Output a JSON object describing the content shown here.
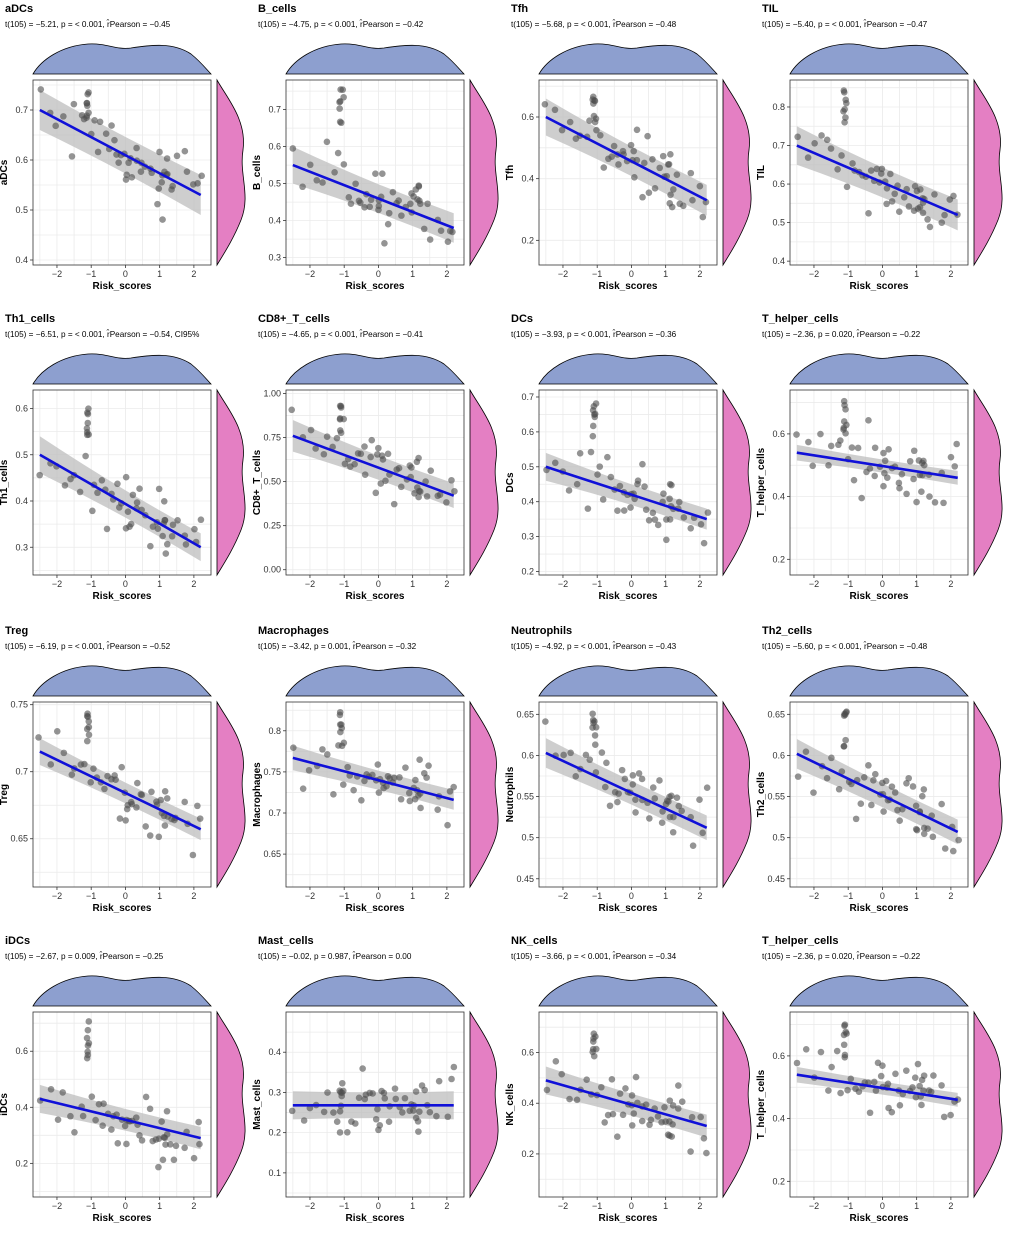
{
  "chart_data": [
    {
      "type": "scatter",
      "title": "aDCs",
      "stat": "t(105) = −5.21, p = < 0.001, r̂Pearson = −0.45",
      "xlabel": "Risk_scores",
      "ylabel": "aDCs",
      "xlim": [
        -2.7,
        2.5
      ],
      "ylim": [
        0.39,
        0.76
      ],
      "xticks": [
        -2,
        -1,
        0,
        1,
        2
      ],
      "yticks": [
        0.4,
        0.5,
        0.6,
        0.7
      ],
      "fit": {
        "x1": -2.5,
        "y1": 0.7,
        "x2": 2.2,
        "y2": 0.53,
        "band_left": 0.04,
        "band_right": 0.04
      }
    },
    {
      "type": "scatter",
      "title": "B_cells",
      "stat": "t(105) = −4.75, p = < 0.001, r̂Pearson = −0.42",
      "xlabel": "Risk_scores",
      "ylabel": "B_cells",
      "xlim": [
        -2.7,
        2.5
      ],
      "ylim": [
        0.28,
        0.78
      ],
      "xticks": [
        -2,
        -1,
        0,
        1,
        2
      ],
      "yticks": [
        0.3,
        0.4,
        0.5,
        0.6,
        0.7
      ],
      "fit": {
        "x1": -2.5,
        "y1": 0.55,
        "x2": 2.2,
        "y2": 0.38,
        "band_left": 0.05,
        "band_right": 0.04
      }
    },
    {
      "type": "scatter",
      "title": "Tfh",
      "stat": "t(105) = −5.68, p = < 0.001, r̂Pearson = −0.48",
      "xlabel": "Risk_scores",
      "ylabel": "Tfh",
      "xlim": [
        -2.7,
        2.5
      ],
      "ylim": [
        0.12,
        0.72
      ],
      "xticks": [
        -2,
        -1,
        0,
        1,
        2
      ],
      "yticks": [
        0.2,
        0.4,
        0.6
      ],
      "fit": {
        "x1": -2.5,
        "y1": 0.6,
        "x2": 2.2,
        "y2": 0.33,
        "band_left": 0.06,
        "band_right": 0.05
      }
    },
    {
      "type": "scatter",
      "title": "TIL",
      "stat": "t(105) = −5.40, p = < 0.001, r̂Pearson = −0.47",
      "xlabel": "Risk_scores",
      "ylabel": "TIL",
      "xlim": [
        -2.7,
        2.5
      ],
      "ylim": [
        0.39,
        0.87
      ],
      "xticks": [
        -2,
        -1,
        0,
        1,
        2
      ],
      "yticks": [
        0.4,
        0.5,
        0.6,
        0.7,
        0.8
      ],
      "fit": {
        "x1": -2.5,
        "y1": 0.7,
        "x2": 2.2,
        "y2": 0.52,
        "band_left": 0.05,
        "band_right": 0.04
      }
    },
    {
      "type": "scatter",
      "title": "Th1_cells",
      "stat": "t(105) = −6.51, p = < 0.001, r̂Pearson = −0.54, CI95%",
      "xlabel": "Risk_scores",
      "ylabel": "Th1_cells",
      "xlim": [
        -2.7,
        2.5
      ],
      "ylim": [
        0.24,
        0.64
      ],
      "xticks": [
        -2,
        -1,
        0,
        1,
        2
      ],
      "yticks": [
        0.3,
        0.4,
        0.5,
        0.6
      ],
      "fit": {
        "x1": -2.5,
        "y1": 0.5,
        "x2": 2.2,
        "y2": 0.3,
        "band_left": 0.04,
        "band_right": 0.03
      }
    },
    {
      "type": "scatter",
      "title": "CD8+_T_cells",
      "stat": "t(105) = −4.65, p = < 0.001, r̂Pearson = −0.41",
      "xlabel": "Risk_scores",
      "ylabel": "CD8+_T_cells",
      "xlim": [
        -2.7,
        2.5
      ],
      "ylim": [
        -0.03,
        1.02
      ],
      "xticks": [
        -2,
        -1,
        0,
        1,
        2
      ],
      "yticks": [
        0.0,
        0.25,
        0.5,
        0.75,
        1.0
      ],
      "ytick_labels": [
        "0.00",
        "0.25",
        "0.50",
        "0.75",
        "1.00"
      ],
      "fit": {
        "x1": -2.5,
        "y1": 0.76,
        "x2": 2.2,
        "y2": 0.42,
        "band_left": 0.09,
        "band_right": 0.07
      }
    },
    {
      "type": "scatter",
      "title": "DCs",
      "stat": "t(105) = −3.93, p = < 0.001, r̂Pearson = −0.36",
      "xlabel": "Risk_scores",
      "ylabel": "DCs",
      "xlim": [
        -2.7,
        2.5
      ],
      "ylim": [
        0.19,
        0.72
      ],
      "xticks": [
        -2,
        -1,
        0,
        1,
        2
      ],
      "yticks": [
        0.2,
        0.3,
        0.4,
        0.5,
        0.6,
        0.7
      ],
      "fit": {
        "x1": -2.5,
        "y1": 0.5,
        "x2": 2.2,
        "y2": 0.35,
        "band_left": 0.04,
        "band_right": 0.03
      }
    },
    {
      "type": "scatter",
      "title": "T_helper_cells",
      "stat": "t(105) = −2.36, p = 0.020, r̂Pearson = −0.22",
      "xlabel": "Risk_scores",
      "ylabel": "T_helper_cells",
      "xlim": [
        -2.7,
        2.5
      ],
      "ylim": [
        0.15,
        0.74
      ],
      "xticks": [
        -2,
        -1,
        0,
        1,
        2
      ],
      "yticks": [
        0.2,
        0.4,
        0.6
      ],
      "fit": {
        "x1": -2.5,
        "y1": 0.54,
        "x2": 2.2,
        "y2": 0.46,
        "band_left": 0.025,
        "band_right": 0.022
      }
    },
    {
      "type": "scatter",
      "title": "Treg",
      "stat": "t(105) = −6.19, p = < 0.001, r̂Pearson = −0.52",
      "xlabel": "Risk_scores",
      "ylabel": "Treg",
      "xlim": [
        -2.7,
        2.5
      ],
      "ylim": [
        0.614,
        0.752
      ],
      "xticks": [
        -2,
        -1,
        0,
        1,
        2
      ],
      "yticks": [
        0.65,
        0.7,
        0.75
      ],
      "fit": {
        "x1": -2.5,
        "y1": 0.715,
        "x2": 2.2,
        "y2": 0.657,
        "band_left": 0.01,
        "band_right": 0.008
      }
    },
    {
      "type": "scatter",
      "title": "Macrophages",
      "stat": "t(105) = −3.42, p = 0.001, r̂Pearson = −0.32",
      "xlabel": "Risk_scores",
      "ylabel": "Macrophages",
      "xlim": [
        -2.7,
        2.5
      ],
      "ylim": [
        0.61,
        0.835
      ],
      "xticks": [
        -2,
        -1,
        0,
        1,
        2
      ],
      "yticks": [
        0.65,
        0.7,
        0.75,
        0.8
      ],
      "fit": {
        "x1": -2.5,
        "y1": 0.767,
        "x2": 2.2,
        "y2": 0.716,
        "band_left": 0.015,
        "band_right": 0.012
      }
    },
    {
      "type": "scatter",
      "title": "Neutrophils",
      "stat": "t(105) = −4.92, p = < 0.001, r̂Pearson = −0.43",
      "xlabel": "Risk_scores",
      "ylabel": "Neutrophils",
      "xlim": [
        -2.7,
        2.5
      ],
      "ylim": [
        0.44,
        0.665
      ],
      "xticks": [
        -2,
        -1,
        0,
        1,
        2
      ],
      "yticks": [
        0.45,
        0.5,
        0.55,
        0.6,
        0.65
      ],
      "fit": {
        "x1": -2.5,
        "y1": 0.603,
        "x2": 2.2,
        "y2": 0.512,
        "band_left": 0.018,
        "band_right": 0.015
      }
    },
    {
      "type": "scatter",
      "title": "Th2_cells",
      "stat": "t(105) = −5.60, p = < 0.001, r̂Pearson = −0.48",
      "xlabel": "Risk_scores",
      "ylabel": "Th2_cells",
      "xlim": [
        -2.7,
        2.5
      ],
      "ylim": [
        0.44,
        0.665
      ],
      "xticks": [
        -2,
        -1,
        0,
        1,
        2
      ],
      "yticks": [
        0.45,
        0.5,
        0.55,
        0.6,
        0.65
      ],
      "fit": {
        "x1": -2.5,
        "y1": 0.602,
        "x2": 2.2,
        "y2": 0.507,
        "band_left": 0.018,
        "band_right": 0.015
      }
    },
    {
      "type": "scatter",
      "title": "iDCs",
      "stat": "t(105) = −2.67, p = 0.009, r̂Pearson = −0.25",
      "xlabel": "Risk_scores",
      "ylabel": "iDCs",
      "xlim": [
        -2.7,
        2.5
      ],
      "ylim": [
        0.08,
        0.74
      ],
      "xticks": [
        -2,
        -1,
        0,
        1,
        2
      ],
      "yticks": [
        0.2,
        0.4,
        0.6
      ],
      "fit": {
        "x1": -2.5,
        "y1": 0.43,
        "x2": 2.2,
        "y2": 0.29,
        "band_left": 0.05,
        "band_right": 0.04
      }
    },
    {
      "type": "scatter",
      "title": "Mast_cells",
      "stat": "t(105) = −0.02, p = 0.987, r̂Pearson = 0.00",
      "xlabel": "Risk_scores",
      "ylabel": "Mast_cells",
      "xlim": [
        -2.7,
        2.5
      ],
      "ylim": [
        0.04,
        0.5
      ],
      "xticks": [
        -2,
        -1,
        0,
        1,
        2
      ],
      "yticks": [
        0.1,
        0.2,
        0.3,
        0.4
      ],
      "fit": {
        "x1": -2.5,
        "y1": 0.268,
        "x2": 2.2,
        "y2": 0.268,
        "band_left": 0.035,
        "band_right": 0.035
      }
    },
    {
      "type": "scatter",
      "title": "NK_cells",
      "stat": "t(105) = −3.66, p = < 0.001, r̂Pearson = −0.34",
      "xlabel": "Risk_scores",
      "ylabel": "NK_cells",
      "xlim": [
        -2.7,
        2.5
      ],
      "ylim": [
        0.03,
        0.76
      ],
      "xticks": [
        -2,
        -1,
        0,
        1,
        2
      ],
      "yticks": [
        0.2,
        0.4,
        0.6
      ],
      "fit": {
        "x1": -2.5,
        "y1": 0.49,
        "x2": 2.2,
        "y2": 0.31,
        "band_left": 0.055,
        "band_right": 0.045
      }
    },
    {
      "type": "scatter",
      "title": "T_helper_cells",
      "stat": "t(105) = −2.36, p = 0.020, r̂Pearson = −0.22",
      "xlabel": "Risk_scores",
      "ylabel": "T_helper_cells",
      "xlim": [
        -2.7,
        2.5
      ],
      "ylim": [
        0.15,
        0.74
      ],
      "xticks": [
        -2,
        -1,
        0,
        1,
        2
      ],
      "yticks": [
        0.2,
        0.4,
        0.6
      ],
      "fit": {
        "x1": -2.5,
        "y1": 0.54,
        "x2": 2.2,
        "y2": 0.46,
        "band_left": 0.025,
        "band_right": 0.022
      }
    }
  ],
  "colors": {
    "point": "#4d4d4d",
    "fit_line": "#1010d8",
    "confidence_band": "#bdbdbd",
    "density_top": "#8d9fcf",
    "density_right": "#e47fc3",
    "grid": "#ebebeb",
    "panel_border": "#333333"
  }
}
